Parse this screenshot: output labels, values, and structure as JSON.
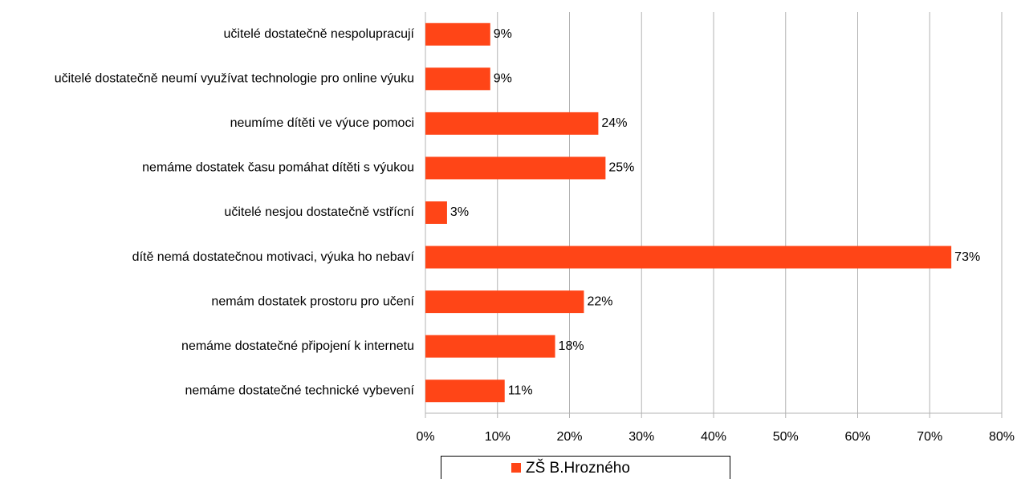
{
  "chart_data": {
    "type": "bar",
    "orientation": "horizontal",
    "categories": [
      "učitelé dostatečně nespolupracují",
      "učitelé dostatečně neumí využívat technologie pro online výuku",
      "neumíme dítěti ve výuce pomoci",
      "nemáme dostatek času pomáhat dítěti s výukou",
      "učitelé nesjou dostatečně vstřícní",
      "dítě nemá dostatečnou motivaci, výuka ho nebaví",
      "nemám dostatek prostoru pro učení",
      "nemáme dostatečné připojení k internetu",
      "nemáme dostatečné technické vybevení"
    ],
    "series": [
      {
        "name": "ZŠ B.Hrozného",
        "color": "#ff4517",
        "values": [
          9,
          9,
          24,
          25,
          3,
          73,
          22,
          18,
          11
        ],
        "value_labels": [
          "9%",
          "9%",
          "24%",
          "25%",
          "3%",
          "73%",
          "22%",
          "18%",
          "11%"
        ]
      }
    ],
    "xlim": [
      0,
      80
    ],
    "xticks": [
      {
        "value": 0,
        "label": "0%"
      },
      {
        "value": 10,
        "label": "10%"
      },
      {
        "value": 20,
        "label": "20%"
      },
      {
        "value": 30,
        "label": "30%"
      },
      {
        "value": 40,
        "label": "40%"
      },
      {
        "value": 50,
        "label": "50%"
      },
      {
        "value": 60,
        "label": "60%"
      },
      {
        "value": 70,
        "label": "70%"
      },
      {
        "value": 80,
        "label": "80%"
      }
    ],
    "grid": true,
    "legend": "bottom"
  }
}
